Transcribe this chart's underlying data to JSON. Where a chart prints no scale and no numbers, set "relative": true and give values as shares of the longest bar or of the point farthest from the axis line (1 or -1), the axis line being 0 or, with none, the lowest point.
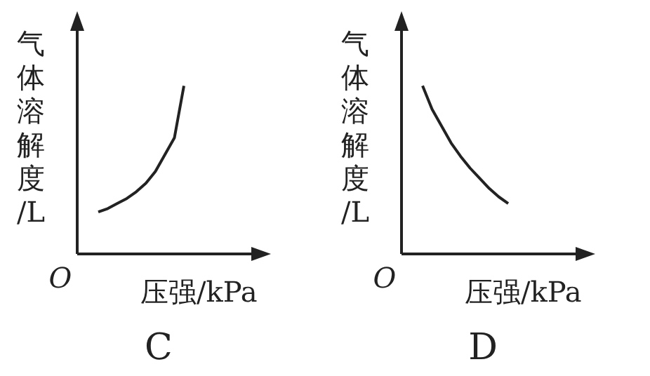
{
  "chart_data": [
    {
      "type": "line",
      "title": "C",
      "xlabel": "压强/kPa",
      "ylabel": "气体溶解度/L",
      "annotations": [
        "O"
      ],
      "relative": true,
      "categories": [
        null,
        null,
        null,
        null,
        null,
        null,
        null,
        null,
        null,
        null
      ],
      "series": [
        {
          "color": "#222222",
          "values": [
            0.25,
            0.27,
            0.3,
            0.33,
            0.37,
            0.42,
            0.49,
            0.59,
            0.69,
            1
          ]
        }
      ]
    },
    {
      "type": "line",
      "title": "D",
      "xlabel": "压强/kPa",
      "ylabel": "气体溶解度/L",
      "annotations": [
        "O"
      ],
      "relative": true,
      "categories": [
        null,
        null,
        null,
        null,
        null,
        null,
        null,
        null,
        null,
        null
      ],
      "series": [
        {
          "color": "#222222",
          "values": [
            1,
            0.86,
            0.76,
            0.66,
            0.58,
            0.51,
            0.45,
            0.39,
            0.34,
            0.3
          ]
        }
      ]
    }
  ]
}
